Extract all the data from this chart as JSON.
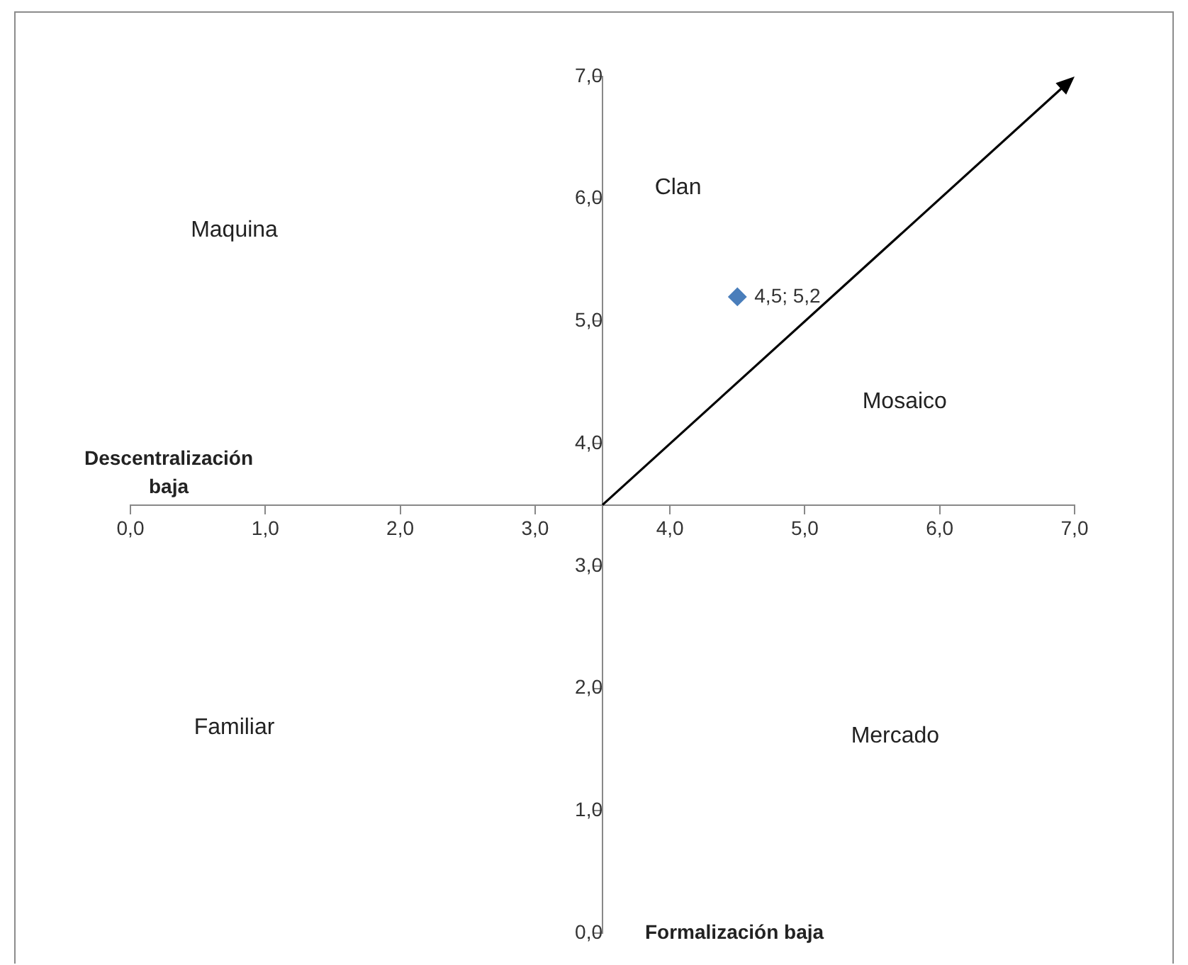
{
  "chart_data": {
    "type": "scatter",
    "xlabel": "Descentralización baja",
    "ylabel": "Formalización baja",
    "xlim": [
      0,
      7
    ],
    "ylim": [
      0,
      7
    ],
    "xticks": [
      {
        "value": 0,
        "label": "0,0"
      },
      {
        "value": 1,
        "label": "1,0"
      },
      {
        "value": 2,
        "label": "2,0"
      },
      {
        "value": 3,
        "label": "3,0"
      },
      {
        "value": 4,
        "label": "4,0"
      },
      {
        "value": 5,
        "label": "5,0"
      },
      {
        "value": 6,
        "label": "6,0"
      },
      {
        "value": 7,
        "label": "7,0"
      }
    ],
    "yticks": [
      {
        "value": 0,
        "label": "0,0"
      },
      {
        "value": 1,
        "label": "1,0"
      },
      {
        "value": 2,
        "label": "2,0"
      },
      {
        "value": 3,
        "label": "3,0"
      },
      {
        "value": 4,
        "label": "4,0"
      },
      {
        "value": 5,
        "label": "5,0"
      },
      {
        "value": 6,
        "label": "6,0"
      },
      {
        "value": 7,
        "label": "7,0"
      }
    ],
    "series": [
      {
        "color": "#4a7ebb",
        "marker": "diamond",
        "x": [
          4.5
        ],
        "values": [
          5.2
        ],
        "value_labels": [
          "4,5; 5,2"
        ]
      }
    ],
    "annotations": [
      "Maquina",
      "Clan",
      "Mosaico",
      "Familiar",
      "Mercado"
    ],
    "grid": false,
    "legend": false
  }
}
